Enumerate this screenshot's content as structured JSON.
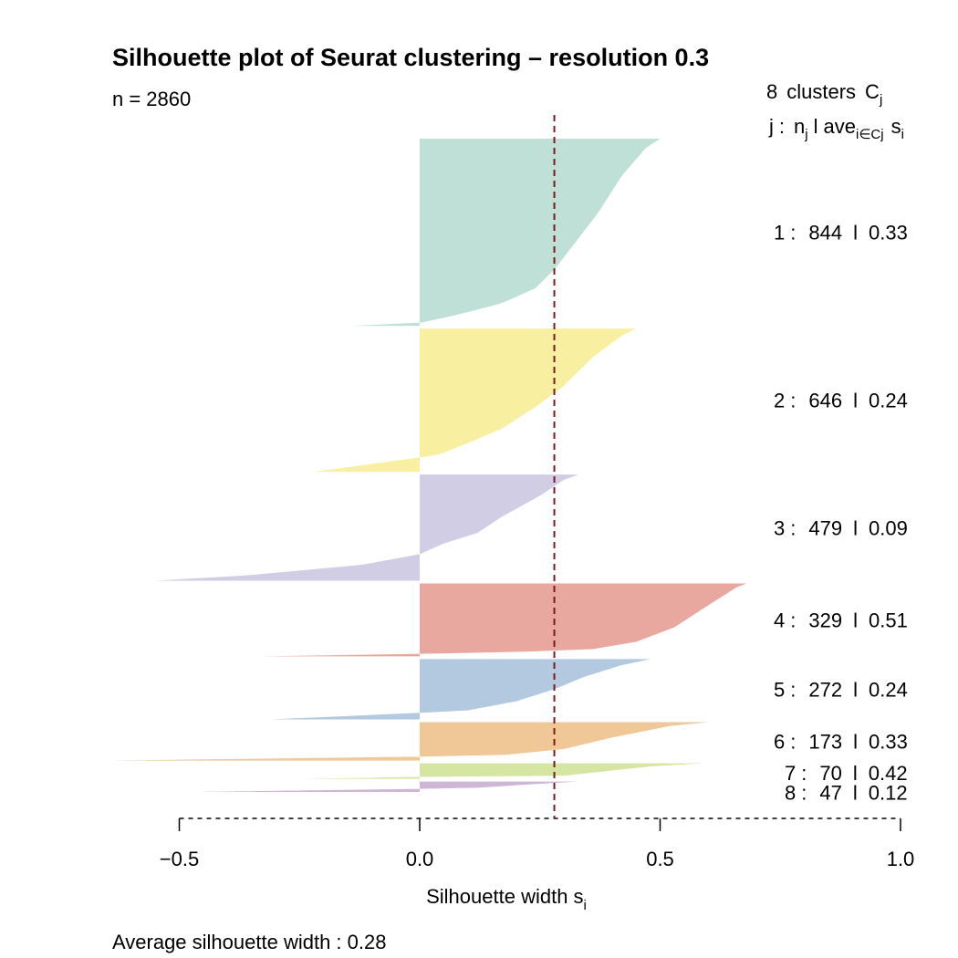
{
  "chart_data": {
    "type": "silhouette",
    "title": "Silhouette plot of Seurat clustering – resolution 0.3",
    "n_label": "n = 2860",
    "header": {
      "clusters_count": "8",
      "clusters_word": "clusters",
      "c_main": "C",
      "c_sub": "j",
      "j": "j",
      "colon": ":",
      "n_main": "n",
      "n_sub": "j",
      "bar": "l",
      "ave_main": "ave",
      "ave_sub": "i∈Cj",
      "s_main": "s",
      "s_sub": "i"
    },
    "xlabel": {
      "main": "Silhouette width s",
      "sub": "i"
    },
    "xlim": [
      -0.5,
      1.0
    ],
    "ticks": [
      -0.5,
      0.0,
      0.5,
      1.0
    ],
    "tick_labels": [
      "−0.5",
      "0.0",
      "0.5",
      "1.0"
    ],
    "average_line": 0.28,
    "average_label": "Average silhouette width :  0.28",
    "clusters": [
      {
        "id": "1",
        "n": "844",
        "ave": "0.33",
        "color": "#BFE0D6",
        "profile": [
          [
            0,
            0.5
          ],
          [
            0.05,
            0.47
          ],
          [
            0.2,
            0.42
          ],
          [
            0.4,
            0.37
          ],
          [
            0.6,
            0.31
          ],
          [
            0.7,
            0.28
          ],
          [
            0.8,
            0.24
          ],
          [
            0.88,
            0.17
          ],
          [
            0.94,
            0.08
          ],
          [
            0.985,
            0.0
          ],
          [
            1.0,
            -0.14
          ]
        ]
      },
      {
        "id": "2",
        "n": "646",
        "ave": "0.24",
        "color": "#F8EFA0",
        "profile": [
          [
            0,
            0.45
          ],
          [
            0.05,
            0.42
          ],
          [
            0.2,
            0.36
          ],
          [
            0.4,
            0.3
          ],
          [
            0.55,
            0.24
          ],
          [
            0.7,
            0.17
          ],
          [
            0.8,
            0.1
          ],
          [
            0.88,
            0.04
          ],
          [
            0.9,
            0.0
          ],
          [
            1.0,
            -0.22
          ]
        ]
      },
      {
        "id": "3",
        "n": "479",
        "ave": "0.09",
        "color": "#D1CDE4",
        "profile": [
          [
            0,
            0.33
          ],
          [
            0.05,
            0.3
          ],
          [
            0.2,
            0.25
          ],
          [
            0.4,
            0.17
          ],
          [
            0.55,
            0.12
          ],
          [
            0.65,
            0.05
          ],
          [
            0.75,
            0.0
          ],
          [
            0.85,
            -0.12
          ],
          [
            0.95,
            -0.36
          ],
          [
            1.0,
            -0.55
          ]
        ]
      },
      {
        "id": "4",
        "n": "329",
        "ave": "0.51",
        "color": "#E8A8A0",
        "profile": [
          [
            0,
            0.68
          ],
          [
            0.05,
            0.66
          ],
          [
            0.3,
            0.6
          ],
          [
            0.6,
            0.53
          ],
          [
            0.8,
            0.45
          ],
          [
            0.9,
            0.36
          ],
          [
            0.94,
            0.2
          ],
          [
            0.965,
            0.0
          ],
          [
            1.0,
            -0.33
          ]
        ]
      },
      {
        "id": "5",
        "n": "272",
        "ave": "0.24",
        "color": "#B3C9DF",
        "profile": [
          [
            0,
            0.48
          ],
          [
            0.1,
            0.42
          ],
          [
            0.3,
            0.34
          ],
          [
            0.5,
            0.28
          ],
          [
            0.7,
            0.2
          ],
          [
            0.85,
            0.1
          ],
          [
            0.89,
            0.0
          ],
          [
            1.0,
            -0.31
          ]
        ]
      },
      {
        "id": "6",
        "n": "173",
        "ave": "0.33",
        "color": "#F0C796",
        "profile": [
          [
            0,
            0.6
          ],
          [
            0.1,
            0.52
          ],
          [
            0.4,
            0.4
          ],
          [
            0.7,
            0.3
          ],
          [
            0.85,
            0.18
          ],
          [
            0.9,
            0.0
          ],
          [
            1.0,
            -0.64
          ]
        ]
      },
      {
        "id": "7",
        "n": "70",
        "ave": "0.42",
        "color": "#D5E5A2",
        "profile": [
          [
            0,
            0.59
          ],
          [
            0.2,
            0.48
          ],
          [
            0.5,
            0.39
          ],
          [
            0.8,
            0.3
          ],
          [
            0.88,
            0.0
          ],
          [
            1.0,
            -0.24
          ]
        ]
      },
      {
        "id": "8",
        "n": "47",
        "ave": "0.12",
        "color": "#CFB5D6",
        "profile": [
          [
            0,
            0.33
          ],
          [
            0.3,
            0.22
          ],
          [
            0.6,
            0.12
          ],
          [
            0.7,
            0.0
          ],
          [
            1.0,
            -0.46
          ]
        ]
      }
    ]
  }
}
